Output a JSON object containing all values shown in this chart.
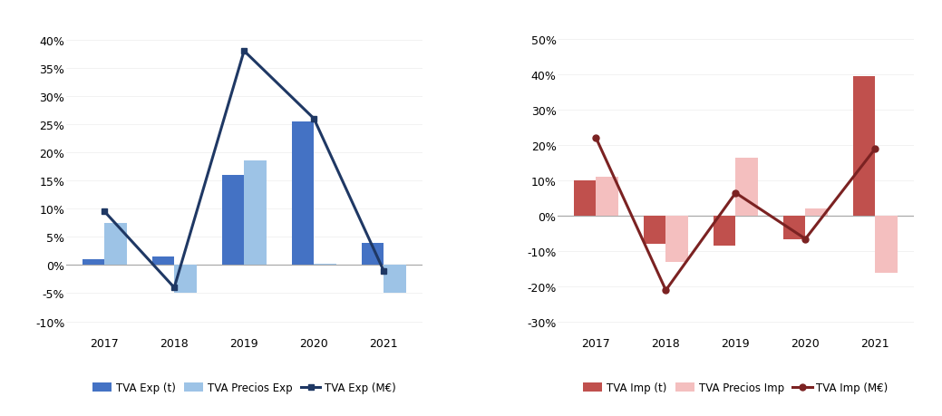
{
  "years": [
    2017,
    2018,
    2019,
    2020,
    2021
  ],
  "exp_bar1": [
    1.0,
    1.5,
    16.0,
    25.5,
    4.0
  ],
  "exp_bar2": [
    7.5,
    -5.0,
    18.5,
    0.2,
    -5.0
  ],
  "exp_line": [
    9.5,
    -4.0,
    38.0,
    26.0,
    -1.0
  ],
  "imp_bar1": [
    10.0,
    -8.0,
    -8.5,
    -6.5,
    39.5
  ],
  "imp_bar2": [
    11.0,
    -13.0,
    16.5,
    2.0,
    -16.0
  ],
  "imp_line": [
    22.0,
    -21.0,
    6.5,
    -6.5,
    19.0
  ],
  "exp_ylim": [
    -12,
    42
  ],
  "exp_yticks": [
    -10,
    -5,
    0,
    5,
    10,
    15,
    20,
    25,
    30,
    35,
    40
  ],
  "imp_ylim": [
    -33,
    53
  ],
  "imp_yticks": [
    -30,
    -20,
    -10,
    0,
    10,
    20,
    30,
    40,
    50
  ],
  "color_exp_bar1": "#4472C4",
  "color_exp_bar2": "#9DC3E6",
  "color_exp_line": "#1F3864",
  "color_imp_bar1": "#C0504D",
  "color_imp_bar2": "#F4BFBF",
  "color_imp_line": "#7B2222",
  "legend_exp": [
    "TVA Exp (t)",
    "TVA Precios Exp",
    "TVA Exp (M€)"
  ],
  "legend_imp": [
    "TVA Imp (t)",
    "TVA Precios Imp",
    "TVA Imp (M€)"
  ],
  "bg_color": "#FFFFFF",
  "tick_fontsize": 9,
  "legend_fontsize": 8.5
}
